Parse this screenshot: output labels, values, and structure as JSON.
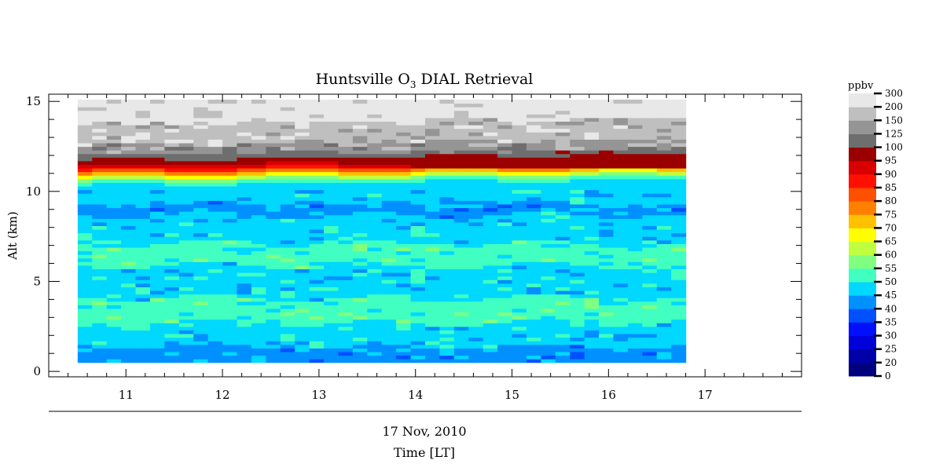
{
  "chart_data": {
    "type": "heatmap",
    "title": "Huntsville O",
    "title_sub": "3",
    "title_suffix": " DIAL Retrieval",
    "xlabel": "Time [LT]",
    "date_label": "17 Nov, 2010",
    "ylabel": "Alt (km)",
    "xlim": [
      10.2,
      18.0
    ],
    "ylim": [
      -0.3,
      15.4
    ],
    "x_ticks": [
      "11",
      "12",
      "13",
      "14",
      "15",
      "16",
      "17"
    ],
    "x_tick_values": [
      11,
      12,
      13,
      14,
      15,
      16,
      17
    ],
    "y_ticks": [
      "0",
      "5",
      "10",
      "15"
    ],
    "y_tick_values": [
      0,
      5,
      10,
      15
    ],
    "data_time_range": [
      10.5,
      16.8
    ],
    "data_alt_range": [
      0.5,
      15.0
    ],
    "colorbar": {
      "title": "ppbv",
      "levels": [
        "0",
        "20",
        "25",
        "30",
        "35",
        "40",
        "45",
        "50",
        "55",
        "60",
        "65",
        "70",
        "75",
        "80",
        "85",
        "90",
        "95",
        "100",
        "125",
        "150",
        "200",
        "300"
      ],
      "colors": [
        "#00007f",
        "#0000a8",
        "#0000d8",
        "#0010ff",
        "#0050ff",
        "#0090ff",
        "#00d8ff",
        "#40ffc0",
        "#80ff80",
        "#c0ff40",
        "#ffff00",
        "#ffc000",
        "#ff8000",
        "#ff5000",
        "#ff1000",
        "#d80000",
        "#9a0000",
        "#6e6e6e",
        "#959595",
        "#bfbfbf",
        "#e8e8e8"
      ]
    },
    "profile": [
      {
        "alt": 0.5,
        "idx": 5
      },
      {
        "alt": 0.9,
        "idx": 5
      },
      {
        "alt": 1.3,
        "idx": 6
      },
      {
        "alt": 2.5,
        "idx": 6
      },
      {
        "alt": 2.6,
        "idx": 7
      },
      {
        "alt": 3.8,
        "idx": 7
      },
      {
        "alt": 4.0,
        "idx": 6
      },
      {
        "alt": 5.8,
        "idx": 7
      },
      {
        "alt": 6.8,
        "idx": 7
      },
      {
        "alt": 7.0,
        "idx": 6
      },
      {
        "alt": 8.6,
        "idx": 5
      },
      {
        "alt": 9.2,
        "idx": 6
      },
      {
        "alt": 10.4,
        "idx": 7
      },
      {
        "alt": 10.6,
        "idx": 8
      },
      {
        "alt": 10.7,
        "idx": 9
      },
      {
        "alt": 10.8,
        "idx": 10
      },
      {
        "alt": 10.9,
        "idx": 11
      },
      {
        "alt": 11.0,
        "idx": 12
      },
      {
        "alt": 11.1,
        "idx": 13
      },
      {
        "alt": 11.2,
        "idx": 14
      },
      {
        "alt": 11.3,
        "idx": 15
      },
      {
        "alt": 11.5,
        "idx": 16
      },
      {
        "alt": 11.8,
        "idx": 17
      },
      {
        "alt": 12.1,
        "idx": 18
      },
      {
        "alt": 12.6,
        "idx": 19
      },
      {
        "alt": 13.8,
        "idx": 20
      }
    ]
  }
}
